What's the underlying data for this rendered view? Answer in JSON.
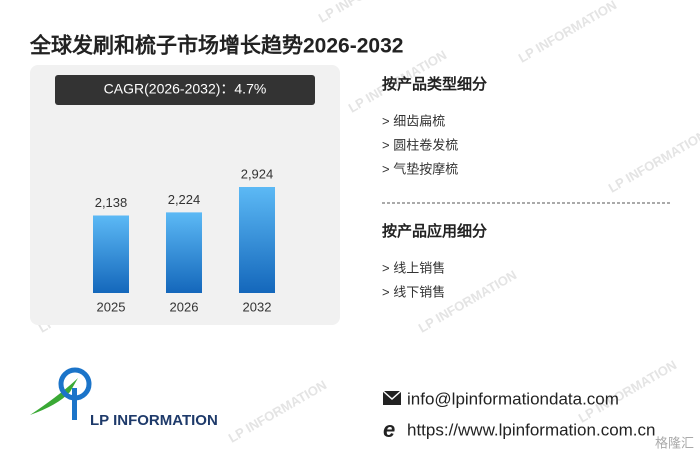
{
  "header": {
    "title": "全球发刷和梳子市场增长趋势2026-2032"
  },
  "chart_data": {
    "type": "bar",
    "annotation": "CAGR(2026-2032)：4.7%",
    "categories": [
      "2025",
      "2026",
      "2032"
    ],
    "values": [
      2138,
      2224,
      2924
    ],
    "value_labels": [
      "2,138",
      "2,224",
      "2,924"
    ],
    "colors": [
      "#5cb9f5",
      "#1467bb"
    ]
  },
  "segments": [
    {
      "title": "按产品类型细分",
      "items": [
        "> 细齿扁梳",
        "> 圆柱卷发梳",
        "> 气垫按摩梳"
      ]
    },
    {
      "title": "按产品应用细分",
      "items": [
        "> 线上销售",
        "> 线下销售"
      ]
    }
  ],
  "footer": {
    "logo_text": "LP INFORMATION",
    "email": "info@lpinformationdata.com",
    "website": "https://www.lpinformation.com.cn"
  },
  "watermark": "LP INFORMATION",
  "badge": "格隆汇"
}
